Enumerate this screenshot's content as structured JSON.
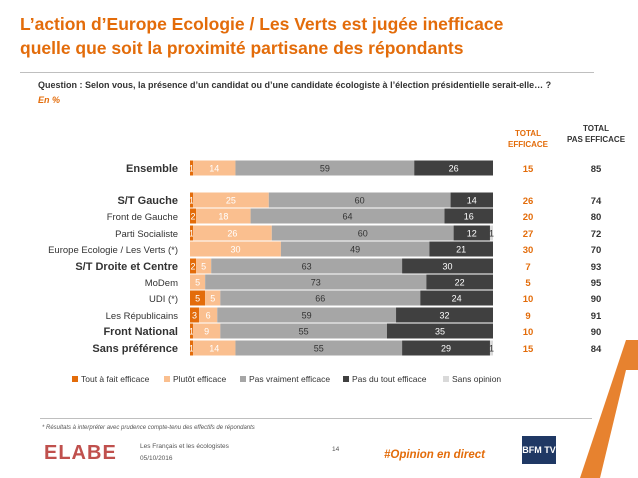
{
  "title_line1": "L’action d’Europe Ecologie / Les Verts est jugée inefficace",
  "title_line2": "quelle que soit la proximité partisane des répondants",
  "question": "Question : Selon vous, la présence d’un candidat ou d’une candidate écologiste à l’élection présidentielle serait-elle… ?",
  "unit": "En %",
  "col_total_efficace_line1": "TOTAL",
  "col_total_efficace_line2": "EFFICACE",
  "col_total_pas_line1": "TOTAL",
  "col_total_pas_line2": "PAS EFFICACE",
  "footnote": "* Résultats à interpréter avec prudence compte-tenu des effectifs de répondants",
  "footer_line1": "Les Français et les écologistes",
  "footer_line2": "05/10/2016",
  "page_number": "14",
  "hashtag": "#Opinion en direct",
  "logo_text": "ELABE",
  "bfm_text": "BFM TV",
  "colors": {
    "tout_a_fait": "#e36c0a",
    "plutot": "#fabf8f",
    "pas_vraiment": "#a6a6a6",
    "pas_du_tout": "#404040",
    "sans_opinion": "#d9d9d9",
    "accent": "#e36c0a"
  },
  "chart_data": {
    "type": "bar",
    "stacked": true,
    "orientation": "horizontal",
    "xlim": [
      0,
      100
    ],
    "categories": [
      "Ensemble",
      "S/T Gauche",
      "Front de Gauche",
      "Parti Socialiste",
      "Europe Ecologie / Les Verts (*)",
      "S/T Droite et Centre",
      "MoDem",
      "UDI (*)",
      "Les Républicains",
      "Front National",
      "Sans préférence"
    ],
    "bold_categories": [
      "Ensemble",
      "S/T Gauche",
      "S/T Droite et Centre",
      "Front National",
      "Sans préférence"
    ],
    "series": [
      {
        "name": "Tout à fait efficace",
        "values": [
          1,
          1,
          2,
          1,
          0,
          2,
          0,
          5,
          3,
          1,
          1
        ]
      },
      {
        "name": "Plutôt efficace",
        "values": [
          14,
          25,
          18,
          26,
          30,
          5,
          5,
          5,
          6,
          9,
          14
        ]
      },
      {
        "name": "Pas vraiment efficace",
        "values": [
          59,
          60,
          64,
          60,
          49,
          63,
          73,
          66,
          59,
          55,
          55
        ]
      },
      {
        "name": "Pas du tout efficace",
        "values": [
          26,
          14,
          16,
          12,
          21,
          30,
          22,
          24,
          32,
          35,
          29
        ]
      },
      {
        "name": "Sans opinion",
        "values": [
          0,
          0,
          0,
          1,
          0,
          0,
          0,
          0,
          0,
          0,
          1
        ]
      }
    ],
    "total_efficace": [
      "15",
      "26",
      "20",
      "27",
      "30",
      "7",
      "5",
      "10",
      "9",
      "10",
      "15"
    ],
    "total_pas_efficace": [
      "85",
      "74",
      "80",
      "72",
      "70",
      "93",
      "95",
      "90",
      "91",
      "90",
      "84"
    ],
    "legend_position": "bottom"
  }
}
